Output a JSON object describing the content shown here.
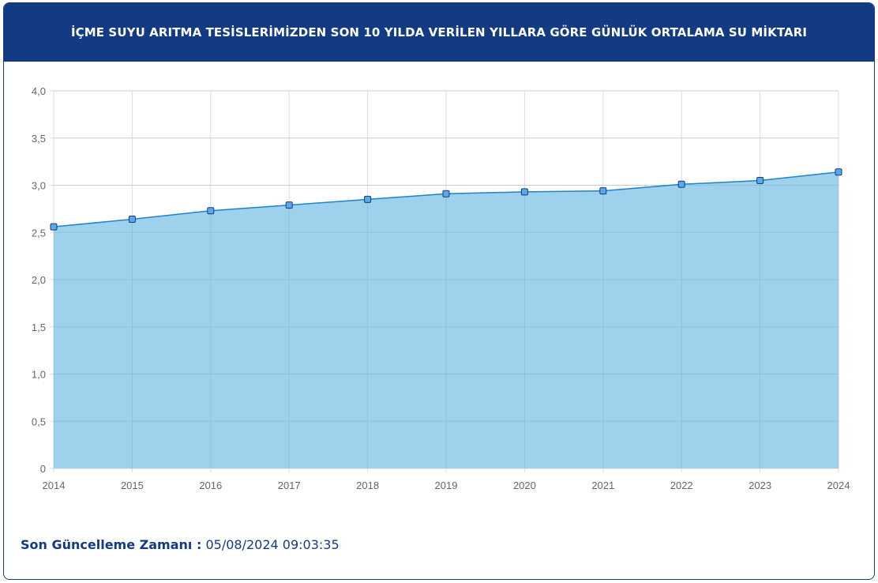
{
  "header": {
    "title": "İÇME SUYU ARITMA TESİSLERİMİZDEN SON 10 YILDA VERİLEN YILLARA GÖRE GÜNLÜK ORTALAMA SU MİKTARI"
  },
  "footer": {
    "label": "Son Güncelleme Zamanı :",
    "value": "05/08/2024 09:03:35"
  },
  "chart_data": {
    "type": "area",
    "title": "İÇME SUYU ARITMA TESİSLERİMİZDEN SON 10 YILDA VERİLEN YILLARA GÖRE GÜNLÜK ORTALAMA SU MİKTARI",
    "categories": [
      "2014",
      "2015",
      "2016",
      "2017",
      "2018",
      "2019",
      "2020",
      "2021",
      "2022",
      "2023",
      "2024"
    ],
    "values": [
      2.56,
      2.64,
      2.73,
      2.79,
      2.85,
      2.91,
      2.93,
      2.94,
      3.01,
      3.05,
      3.14
    ],
    "ylim": [
      0,
      4
    ],
    "yticks": [
      0,
      0.5,
      1,
      1.5,
      2,
      2.5,
      3,
      3.5,
      4
    ],
    "ytick_labels": [
      "0",
      "0,5",
      "1,0",
      "1,5",
      "2,0",
      "2,5",
      "3,0",
      "3,5",
      "4,0"
    ],
    "grid": true,
    "colors": {
      "fill": "#9bcfeb",
      "line": "#1f82cc",
      "marker": "#5aa9e6",
      "grid": "#dddddd"
    }
  }
}
